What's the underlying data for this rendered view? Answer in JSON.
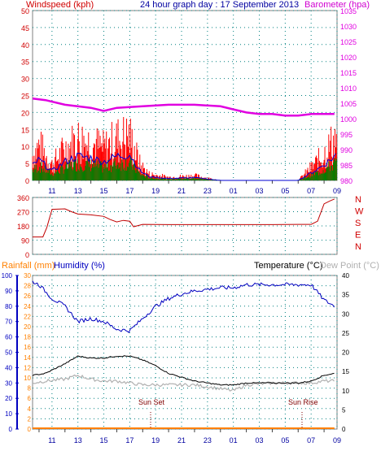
{
  "colors": {
    "wind": "#e00000",
    "wind_gust": "#ff0000",
    "wind_avg": "#0000d0",
    "wind_low": "#008000",
    "barometer": "#e000e0",
    "direction": "#c00000",
    "humidity": "#0000c0",
    "temperature": "#000000",
    "dewpoint": "#b0b0b0",
    "rainfall": "#ff8000",
    "grid": "#008080",
    "title": "#0000a0",
    "axis_red": "#d00000"
  },
  "header": {
    "left_label": "Windspeed (kph)",
    "center_title": "24 hour graph day : 17 September 2013",
    "right_label": "Barometer (hpa)"
  },
  "lower_header": {
    "rain_label": "Rainfall (mm)",
    "humidity_label": "Humidity (%)",
    "temp_label": "Temperature (°C)",
    "dew_label": "Dew Point (°C)"
  },
  "annotations": {
    "sunset": "Sun Set",
    "sunrise": "Sun Rise"
  },
  "chart_data": [
    {
      "type": "line",
      "panel": "wind-barometer",
      "x_ticks": [
        "11",
        "13",
        "15",
        "17",
        "19",
        "21",
        "23",
        "01",
        "03",
        "05",
        "07",
        "09"
      ],
      "y_left_ticks": [
        "0",
        "5",
        "10",
        "15",
        "20",
        "25",
        "30",
        "35",
        "40",
        "45",
        "50"
      ],
      "y_right_ticks": [
        "980",
        "985",
        "990",
        "995",
        "1000",
        "1005",
        "1010",
        "1015",
        "1020",
        "1025",
        "1030",
        "1035"
      ],
      "ylim_left": [
        0,
        50
      ],
      "ylim_right": [
        980,
        1035
      ],
      "series": [
        {
          "name": "Windspeed (kph)",
          "x": [
            9.5,
            10,
            11,
            12,
            13,
            14,
            15,
            16,
            17,
            17.8,
            18.5,
            20,
            22,
            24,
            26,
            28,
            30,
            31,
            31.5,
            32.3,
            33
          ],
          "values": [
            8,
            11,
            5,
            10,
            13,
            12,
            10,
            13,
            14,
            5,
            2,
            1,
            1.5,
            0,
            0,
            0,
            0,
            4,
            6,
            10,
            14
          ]
        },
        {
          "name": "Barometer (hpa)",
          "x": [
            9.5,
            10.5,
            12,
            14,
            15,
            16,
            18,
            20,
            22,
            24,
            25,
            26,
            27,
            28,
            29,
            30,
            31,
            32,
            32.8
          ],
          "values": [
            1006.5,
            1006,
            1004.5,
            1003.5,
            1002.5,
            1003.5,
            1004,
            1004.5,
            1004.5,
            1004,
            1003,
            1002,
            1001.5,
            1001.5,
            1001,
            1001,
            1001.5,
            1001.5,
            1001.5
          ]
        }
      ]
    },
    {
      "type": "line",
      "panel": "wind-direction",
      "y_left_ticks": [
        "0",
        "90",
        "180",
        "270",
        "360"
      ],
      "y_right_ticks": [
        "N",
        "W",
        "S",
        "E",
        "N"
      ],
      "ylim": [
        0,
        360
      ],
      "series": [
        {
          "name": "Direction",
          "x": [
            9.5,
            10.3,
            10.6,
            11,
            12,
            12.5,
            13,
            14,
            15,
            15.5,
            16,
            16.5,
            17,
            17.3,
            18,
            20,
            22,
            24,
            26,
            28,
            30,
            31,
            31.5,
            32,
            32.5,
            32.8
          ],
          "values": [
            110,
            110,
            170,
            285,
            288,
            270,
            255,
            250,
            240,
            220,
            205,
            215,
            210,
            175,
            190,
            188,
            188,
            188,
            188,
            188,
            190,
            190,
            210,
            320,
            340,
            350
          ]
        }
      ]
    },
    {
      "type": "line",
      "panel": "temp-humidity-rain",
      "x_ticks": [
        "11",
        "13",
        "15",
        "17",
        "19",
        "21",
        "23",
        "01",
        "03",
        "05",
        "07",
        "09"
      ],
      "y_rain_ticks": [
        "0",
        "2",
        "4",
        "6",
        "8",
        "10",
        "12",
        "14",
        "16",
        "18",
        "20",
        "22",
        "24",
        "26",
        "28",
        "30"
      ],
      "y_humidity_ticks": [
        "0",
        "10",
        "20",
        "30",
        "40",
        "50",
        "60",
        "70",
        "80",
        "90",
        "100"
      ],
      "y_temp_ticks": [
        "0",
        "5",
        "10",
        "15",
        "20",
        "25",
        "30",
        "35",
        "40"
      ],
      "ylim_rain": [
        0,
        30
      ],
      "ylim_humidity": [
        0,
        100
      ],
      "ylim_temp": [
        0,
        40
      ],
      "series": [
        {
          "name": "Humidity (%)",
          "x": [
            9.5,
            10,
            11,
            12,
            13,
            14,
            15,
            16,
            17,
            18,
            19,
            20,
            21,
            22,
            23,
            24,
            25,
            26,
            27,
            28,
            29,
            30,
            31,
            32,
            32.8
          ],
          "values": [
            96,
            94,
            85,
            80,
            70,
            72,
            70,
            65,
            64,
            72,
            80,
            85,
            88,
            90,
            91,
            92,
            92,
            94,
            94,
            94,
            94,
            94,
            94,
            84,
            80
          ]
        },
        {
          "name": "Temperature (°C)",
          "x": [
            9.5,
            10.5,
            12,
            13,
            14,
            15,
            16,
            17,
            18,
            19,
            20,
            21,
            22,
            23,
            24,
            25,
            26,
            27,
            28,
            29,
            30,
            31,
            32,
            32.8
          ],
          "values": [
            14,
            14.5,
            17,
            19,
            18.5,
            18.5,
            19,
            19,
            18,
            16.5,
            14.5,
            13.5,
            12.5,
            12,
            11.5,
            11.5,
            12,
            12,
            12,
            12,
            12,
            12.5,
            14,
            14.5
          ]
        },
        {
          "name": "Dew Point (°C)",
          "x": [
            9.5,
            10.5,
            12,
            13,
            14,
            15,
            16,
            17,
            18,
            20,
            22,
            24,
            25,
            26,
            28,
            30,
            31,
            32,
            32.8
          ],
          "values": [
            12,
            12.5,
            13,
            14,
            13,
            12.5,
            12.5,
            12,
            11.5,
            11.5,
            11.5,
            10.5,
            10,
            11.5,
            12,
            12,
            12,
            12.5,
            12.5
          ]
        },
        {
          "name": "Rainfall (mm)",
          "x": [
            9.5,
            32.8
          ],
          "values": [
            0,
            0
          ]
        }
      ]
    }
  ]
}
